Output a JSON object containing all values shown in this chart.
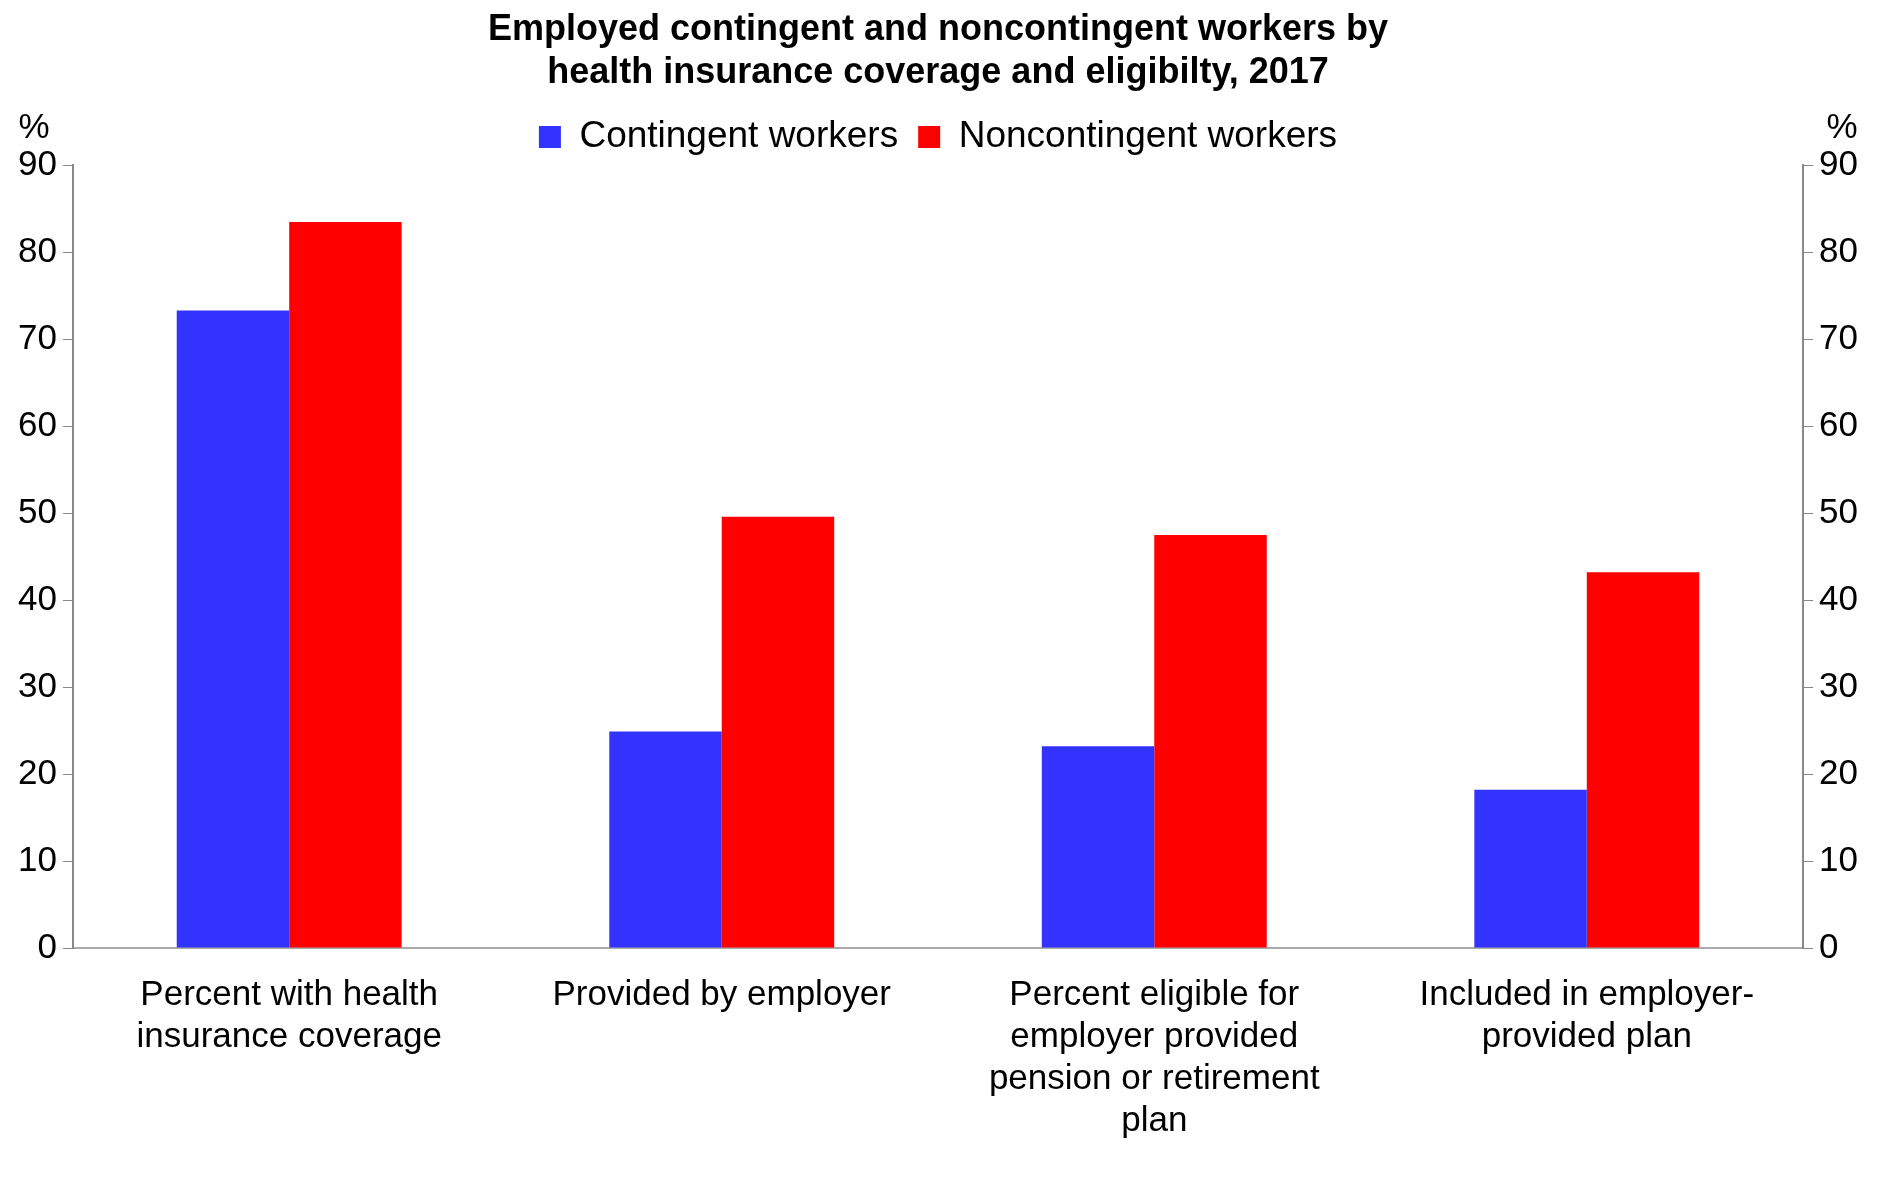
{
  "chart_data": {
    "type": "bar",
    "title": "Employed contingent and noncontingent workers by health insurance coverage and eligibilty, 2017",
    "ylabel": "%",
    "y2label": "%",
    "categories": [
      "Percent with health insurance coverage",
      "Provided by employer",
      "Percent eligible for employer provided pension or retirement plan",
      "Included in employer-provided plan"
    ],
    "series": [
      {
        "name": "Contingent workers",
        "color": "#3333ff",
        "values": [
          73.3,
          24.9,
          23.2,
          18.2
        ]
      },
      {
        "name": "Noncontingent workers",
        "color": "#ff0000",
        "values": [
          83.5,
          49.6,
          47.5,
          43.2
        ]
      }
    ],
    "ylim": [
      0,
      90
    ],
    "yticks": [
      0,
      10,
      20,
      30,
      40,
      50,
      60,
      70,
      80,
      90
    ],
    "y2lim": [
      0,
      90
    ],
    "y2ticks": [
      0,
      10,
      20,
      30,
      40,
      50,
      60,
      70,
      80,
      90
    ],
    "grid": false,
    "legend": "top"
  }
}
